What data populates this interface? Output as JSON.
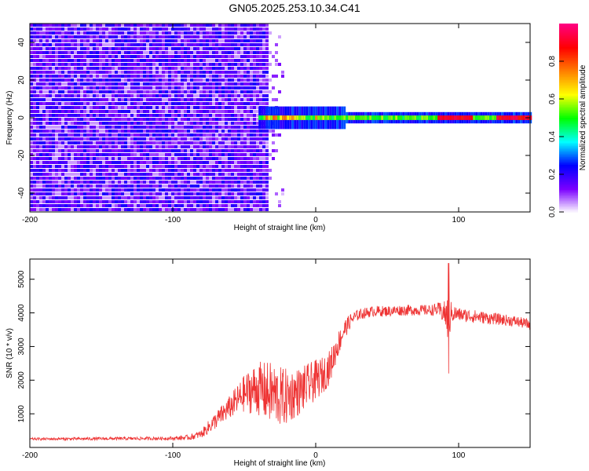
{
  "title": "GN05.2025.253.10.34.C41",
  "chart_data": [
    {
      "type": "heatmap",
      "title": "GN05.2025.253.10.34.C41",
      "xlabel": "Height of straight line (km)",
      "ylabel": "Frequency (Hz)",
      "xlim": [
        -200,
        150
      ],
      "ylim": [
        -50,
        50
      ],
      "x_ticks": [
        -200,
        -100,
        0,
        100
      ],
      "x_tick_labels": [
        "-200",
        "-100",
        "0",
        "100"
      ],
      "y_ticks": [
        -40,
        -20,
        0,
        20,
        40
      ],
      "y_tick_labels": [
        "-40",
        "-20",
        "0",
        "20",
        "40"
      ],
      "noise_region_x": [
        -200,
        -35
      ],
      "signal_band": {
        "x_start": -40,
        "x_end": 150,
        "center_hz": 0,
        "half_width_hz": 3
      },
      "colorbar": {
        "label": "Normalized spectral amplitude",
        "range": [
          0.0,
          1.0
        ],
        "ticks": [
          0.0,
          0.2,
          0.4,
          0.6,
          0.8
        ],
        "tick_labels": [
          "0.0",
          "0.2",
          "0.4",
          "0.6",
          "0.8"
        ],
        "colors": [
          "#ffffff",
          "#7b00ff",
          "#0000ff",
          "#00ffff",
          "#00ff00",
          "#ffff00",
          "#ff8000",
          "#ff0000",
          "#ff0080"
        ]
      }
    },
    {
      "type": "line",
      "xlabel": "Height of straight line (km)",
      "ylabel": "SNR (10 * v/v)",
      "xlim": [
        -200,
        150
      ],
      "ylim": [
        0,
        5600
      ],
      "x_ticks": [
        -200,
        -100,
        0,
        100
      ],
      "x_tick_labels": [
        "-200",
        "-100",
        "0",
        "100"
      ],
      "y_ticks": [
        1000,
        2000,
        3000,
        4000,
        5000
      ],
      "y_tick_labels": [
        "1000",
        "2000",
        "3000",
        "4000",
        "5000"
      ],
      "color": "#ee3333",
      "series": [
        {
          "name": "SNR",
          "x": [
            -200,
            -150,
            -100,
            -88,
            -80,
            -75,
            -70,
            -65,
            -60,
            -55,
            -50,
            -45,
            -40,
            -35,
            -30,
            -25,
            -20,
            -15,
            -10,
            -5,
            0,
            5,
            10,
            15,
            20,
            25,
            30,
            35,
            40,
            50,
            60,
            70,
            80,
            85,
            90,
            93,
            95,
            100,
            110,
            120,
            130,
            140,
            150
          ],
          "y": [
            250,
            260,
            270,
            300,
            400,
            600,
            800,
            1000,
            1200,
            1400,
            1600,
            1700,
            1750,
            1650,
            1600,
            1500,
            1500,
            1600,
            1700,
            1850,
            2000,
            2150,
            2400,
            3000,
            3500,
            3800,
            3950,
            4000,
            4050,
            4050,
            4080,
            4080,
            4080,
            4100,
            4000,
            3800,
            4000,
            3950,
            3900,
            3850,
            3800,
            3750,
            3650
          ],
          "noise_amplitude": [
            40,
            45,
            50,
            80,
            120,
            200,
            250,
            300,
            350,
            450,
            550,
            700,
            800,
            900,
            950,
            900,
            850,
            750,
            700,
            650,
            600,
            550,
            500,
            400,
            300,
            200,
            170,
            160,
            160,
            160,
            160,
            160,
            160,
            200,
            350,
            800,
            300,
            200,
            200,
            180,
            170,
            160,
            160
          ],
          "spike": {
            "x": 93,
            "max": 5480,
            "min": 2200
          }
        }
      ]
    }
  ]
}
